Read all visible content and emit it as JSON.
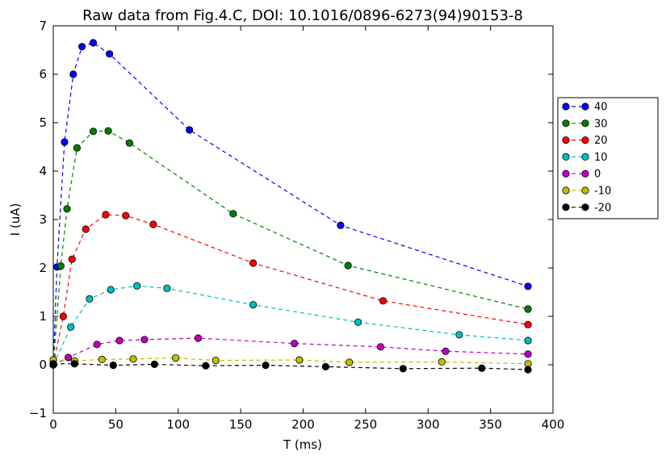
{
  "chart_data": {
    "type": "line",
    "title": "Raw data from Fig.4.C, DOI: 10.1016/0896-6273(94)90153-8",
    "xlabel": "T (ms)",
    "ylabel": "I (uA)",
    "xlim": [
      0,
      400
    ],
    "ylim": [
      -1,
      7
    ],
    "xticks": [
      0,
      50,
      100,
      150,
      200,
      250,
      300,
      350,
      400
    ],
    "yticks": [
      -1,
      0,
      1,
      2,
      3,
      4,
      5,
      6,
      7
    ],
    "grid": false,
    "legend": "right-outside",
    "series": [
      {
        "name": "40",
        "color": "#0000ff",
        "x": [
          0,
          3,
          9,
          16,
          23,
          32,
          45,
          109,
          230,
          380
        ],
        "y": [
          0,
          2.02,
          4.6,
          6.0,
          6.57,
          6.65,
          6.42,
          4.85,
          2.88,
          1.62
        ]
      },
      {
        "name": "30",
        "color": "#008000",
        "x": [
          0,
          6,
          11,
          19,
          32,
          44,
          61,
          144,
          236,
          380
        ],
        "y": [
          0,
          2.04,
          3.22,
          4.48,
          4.82,
          4.83,
          4.58,
          3.12,
          2.05,
          1.15
        ]
      },
      {
        "name": "20",
        "color": "#ff0000",
        "x": [
          0,
          8,
          15,
          26,
          42,
          58,
          80,
          160,
          264,
          380
        ],
        "y": [
          0,
          1.0,
          2.18,
          2.8,
          3.1,
          3.08,
          2.9,
          2.1,
          1.32,
          0.83
        ]
      },
      {
        "name": "10",
        "color": "#00bfbf",
        "x": [
          0,
          14,
          29,
          46,
          67,
          91,
          160,
          244,
          325,
          380
        ],
        "y": [
          0,
          0.78,
          1.36,
          1.55,
          1.63,
          1.58,
          1.24,
          0.88,
          0.62,
          0.5
        ]
      },
      {
        "name": "0",
        "color": "#bf00bf",
        "x": [
          0,
          12,
          35,
          53,
          73,
          116,
          193,
          262,
          314,
          380
        ],
        "y": [
          0,
          0.15,
          0.42,
          0.5,
          0.52,
          0.55,
          0.44,
          0.37,
          0.28,
          0.22
        ]
      },
      {
        "name": "-10",
        "color": "#bfbf00",
        "x": [
          0,
          17,
          39,
          64,
          98,
          130,
          197,
          237,
          311,
          380
        ],
        "y": [
          0.1,
          0.08,
          0.11,
          0.12,
          0.14,
          0.09,
          0.1,
          0.05,
          0.06,
          0.02
        ]
      },
      {
        "name": "-20",
        "color": "#000000",
        "x": [
          0,
          17,
          48,
          81,
          122,
          170,
          218,
          280,
          343,
          380
        ],
        "y": [
          0.02,
          0.02,
          -0.01,
          0.01,
          -0.02,
          -0.01,
          -0.04,
          -0.08,
          -0.07,
          -0.1
        ]
      }
    ]
  }
}
